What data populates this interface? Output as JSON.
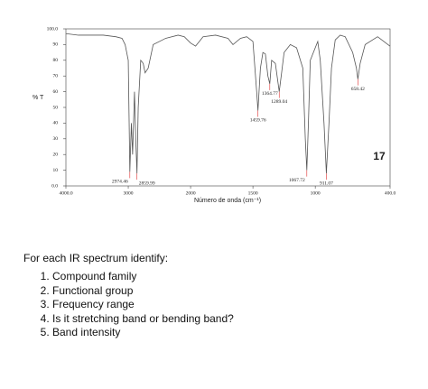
{
  "chart_data": {
    "type": "line",
    "x_label": "Número de onda (cm⁻¹)",
    "y_label": "% T",
    "panel_label": "17",
    "xlim": [
      4000,
      400
    ],
    "ylim": [
      0,
      100
    ],
    "x_scale_break": 2000,
    "xticks": [
      {
        "value": 4000,
        "label": "4000.0"
      },
      3000,
      2000,
      1500,
      1000,
      {
        "value": 400,
        "label": "400.0"
      }
    ],
    "yticks": [
      {
        "value": 0,
        "label": "0.0"
      },
      10,
      20,
      30,
      40,
      50,
      60,
      70,
      80,
      90,
      {
        "value": 100,
        "label": "100.0"
      }
    ],
    "color": "#555555",
    "annotation_color": "#e03030",
    "x": [
      4000,
      3800,
      3600,
      3400,
      3200,
      3100,
      3050,
      3000,
      2974.46,
      2950,
      2930,
      2900,
      2880,
      2859.99,
      2840,
      2800,
      2760,
      2730,
      2680,
      2600,
      2400,
      2200,
      2100,
      2000,
      1960,
      1900,
      1800,
      1700,
      1660,
      1600,
      1550,
      1500,
      1470,
      1459.76,
      1440,
      1420,
      1400,
      1380,
      1364.77,
      1350,
      1320,
      1289.04,
      1270,
      1250,
      1200,
      1150,
      1100,
      1080,
      1067.72,
      1055,
      1040,
      1000,
      980,
      960,
      930,
      911.07,
      890,
      870,
      840,
      800,
      760,
      700,
      670,
      658.42,
      640,
      600,
      500,
      450,
      400
    ],
    "values": [
      97,
      96,
      96,
      96,
      95,
      94,
      90,
      80,
      9,
      40,
      20,
      60,
      30,
      8,
      50,
      80,
      78,
      72,
      75,
      90,
      94,
      96,
      95,
      91,
      89,
      95,
      96,
      94,
      90,
      94,
      95,
      92,
      60,
      48,
      75,
      85,
      84,
      70,
      65,
      80,
      78,
      60,
      72,
      85,
      90,
      88,
      75,
      30,
      10,
      40,
      80,
      88,
      92,
      80,
      40,
      8,
      40,
      75,
      93,
      96,
      95,
      85,
      75,
      68,
      78,
      90,
      95,
      92,
      89
    ],
    "annotations": [
      {
        "x": 2974.46,
        "label": "2974.46"
      },
      {
        "x": 2859.99,
        "label": "2859.99"
      },
      {
        "x": 1459.76,
        "label": "1459.76"
      },
      {
        "x": 1364.77,
        "label": "1364.77"
      },
      {
        "x": 1289.04,
        "label": "1289.04"
      },
      {
        "x": 1067.72,
        "label": "1067.72"
      },
      {
        "x": 911.07,
        "label": "911.07"
      },
      {
        "x": 658.42,
        "label": "658.42"
      }
    ]
  },
  "instructions": {
    "heading": "For each IR spectrum identify:",
    "items": [
      "Compound family",
      "Functional group",
      "Frequency range",
      "Is it stretching band or bending band?",
      "Band intensity"
    ]
  }
}
